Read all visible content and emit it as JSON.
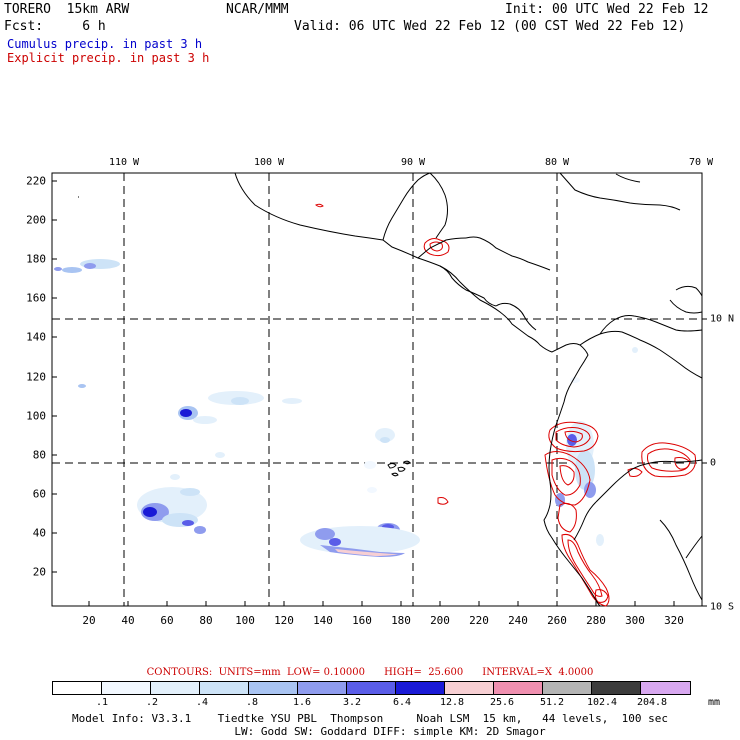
{
  "header": {
    "model": "TORERO  15km ARW",
    "org": "NCAR/MMM",
    "init": "Init: 00 UTC Wed 22 Feb 12",
    "fcst": "Fcst:     6 h",
    "valid": "Valid: 06 UTC Wed 22 Feb 12 (00 CST Wed 22 Feb 12)",
    "field1": "Cumulus precip. in past 3 h",
    "field2": "Explicit precip. in past 3 h",
    "field1_color": "#0000cc",
    "field2_color": "#cc0000"
  },
  "map": {
    "top_lon_labels": [
      "110 W",
      "100 W",
      "90 W",
      "80 W",
      "70 W"
    ],
    "right_lat_labels": [
      "10 N",
      "0",
      "10 S"
    ],
    "y_grid_labels": [
      "220",
      "200",
      "180",
      "160",
      "140",
      "120",
      "100",
      "80",
      "60",
      "40",
      "20"
    ],
    "x_grid_labels": [
      "20",
      "40",
      "60",
      "80",
      "100",
      "120",
      "140",
      "160",
      "180",
      "200",
      "220",
      "240",
      "260",
      "280",
      "300",
      "320"
    ]
  },
  "contours": {
    "label": "CONTOURS:  UNITS=mm  LOW= 0.10000      HIGH=  25.600      INTERVAL=X  4.0000"
  },
  "colorbar": {
    "colors": [
      "#ffffff",
      "#f2f8ff",
      "#e3f0fb",
      "#cde3f7",
      "#a9c4f2",
      "#8f9cee",
      "#5a5de8",
      "#1a1ad6",
      "#f7cfd3",
      "#f090b0",
      "#b4b4b4",
      "#3c3c3c",
      "#d8a8f0"
    ],
    "labels": [
      ".1",
      ".2",
      ".4",
      ".8",
      "1.6",
      "3.2",
      "6.4",
      "12.8",
      "25.6",
      "51.2",
      "102.4",
      "204.8"
    ],
    "unit": "mm"
  },
  "footer": {
    "line1": "Model Info: V3.3.1    Tiedtke YSU PBL  Thompson     Noah LSM  15 km,   44 levels,  100 sec",
    "line2": "LW: Godd SW: Goddard DIFF: simple KM: 2D Smagor"
  }
}
